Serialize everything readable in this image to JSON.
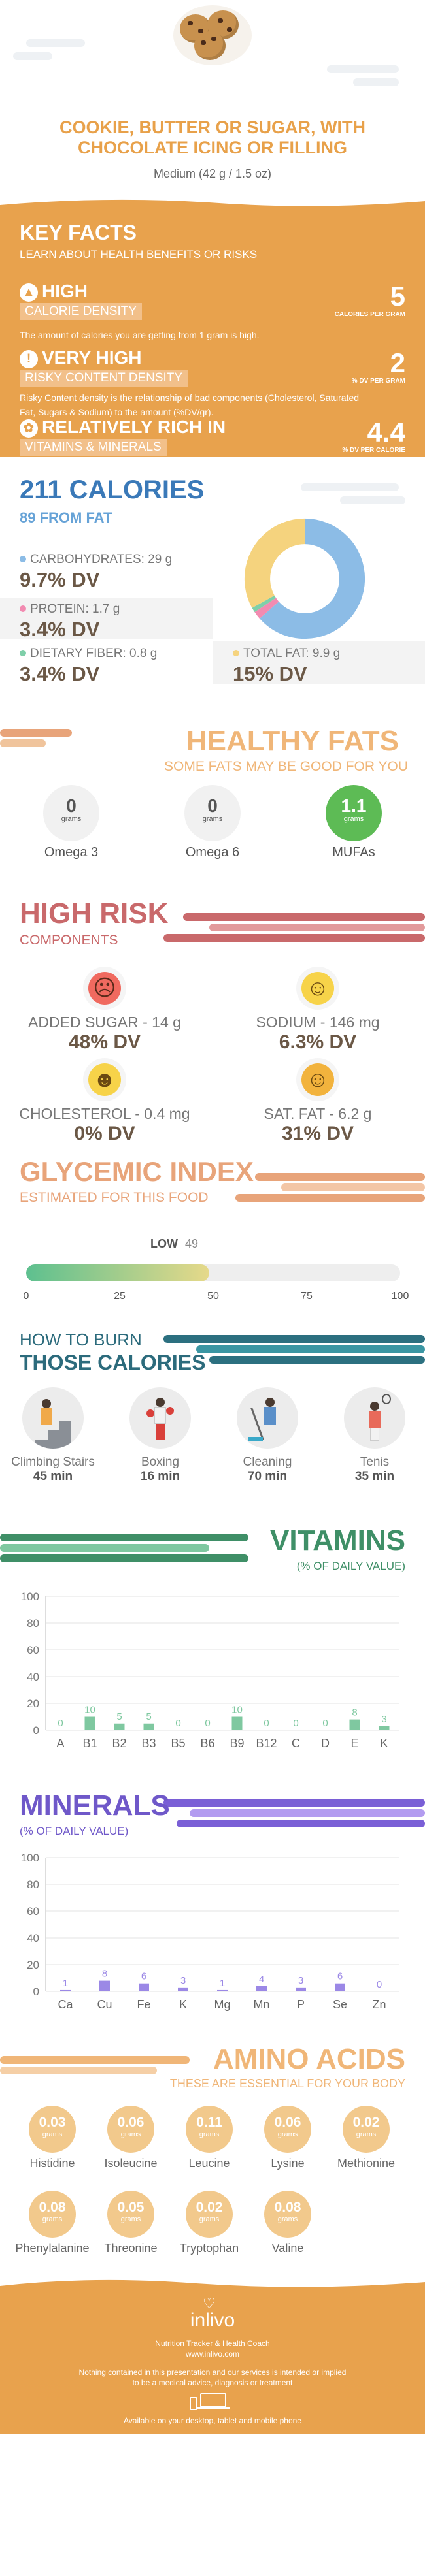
{
  "header": {
    "title_line1": "COOKIE, BUTTER OR SUGAR, WITH",
    "title_line2": "CHOCOLATE ICING OR FILLING",
    "serving": "Medium (42 g / 1.5 oz)"
  },
  "key_facts": {
    "title": "KEY FACTS",
    "subtitle": "LEARN ABOUT HEALTH BENEFITS OR RISKS",
    "items": [
      {
        "level": "HIGH",
        "tag": "CALORIE DENSITY",
        "desc": "The amount of calories you are getting from 1 gram is high.",
        "value": "5",
        "unit": "CALORIES PER GRAM"
      },
      {
        "level": "VERY HIGH",
        "tag": "RISKY CONTENT DENSITY",
        "desc": "Risky Content density is the relationship of bad components (Cholesterol, Saturated Fat, Sugars & Sodium) to the amount (%DV/gr).",
        "value": "2",
        "unit": "% DV PER GRAM"
      },
      {
        "level": "RELATIVELY RICH  IN",
        "tag": "VITAMINS & MINERALS",
        "desc": "",
        "value": "4.4",
        "unit": "% DV PER CALORIE"
      }
    ]
  },
  "calories": {
    "title": "211 CALORIES",
    "from_fat": "89 FROM FAT",
    "carbs": {
      "label": "CARBOHYDRATES: 29 g",
      "dv": "9.7% DV",
      "color": "#8cbce6"
    },
    "protein": {
      "label": "PROTEIN: 1.7 g",
      "dv": "3.4% DV",
      "color": "#f28bb1"
    },
    "fiber": {
      "label": "DIETARY FIBER: 0.8 g",
      "dv": "3.4% DV",
      "color": "#7fcfa9"
    },
    "fat": {
      "label": "TOTAL FAT: 9.9 g",
      "dv": "15% DV",
      "color": "#f5d37e"
    }
  },
  "healthy_fats": {
    "title": "HEALTHY FATS",
    "subtitle": "SOME FATS MAY BE GOOD FOR YOU",
    "unit": "grams",
    "items": [
      {
        "value": "0",
        "name": "Omega 3"
      },
      {
        "value": "0",
        "name": "Omega 6"
      },
      {
        "value": "1.1",
        "name": "MUFAs"
      }
    ]
  },
  "high_risk": {
    "title": "HIGH RISK",
    "subtitle": "COMPONENTS",
    "items": [
      {
        "label": "ADDED SUGAR - 14 g",
        "dv": "48% DV",
        "face": "☹",
        "color": "#f06a5f"
      },
      {
        "label": "SODIUM - 146 mg",
        "dv": "6.3% DV",
        "face": "☺",
        "color": "#f7d349"
      },
      {
        "label": "CHOLESTEROL - 0.4 mg",
        "dv": "0% DV",
        "face": "☻",
        "color": "#f7d349"
      },
      {
        "label": "SAT. FAT - 6.2 g",
        "dv": "31% DV",
        "face": "☺",
        "color": "#f2b33d"
      }
    ]
  },
  "glycemic": {
    "title": "GLYCEMIC INDEX",
    "subtitle": "ESTIMATED FOR THIS FOOD",
    "level": "LOW",
    "value": 49,
    "ticks": [
      "0",
      "25",
      "50",
      "75",
      "100"
    ]
  },
  "burn": {
    "title1": "HOW TO BURN",
    "title2": "THOSE CALORIES",
    "activities": [
      {
        "name": "Climbing Stairs",
        "time": "45 min"
      },
      {
        "name": "Boxing",
        "time": "16 min"
      },
      {
        "name": "Cleaning",
        "time": "70 min"
      },
      {
        "name": "Tenis",
        "time": "35 min"
      }
    ]
  },
  "vitamins": {
    "title": "VITAMINS",
    "subtitle": "(% OF DAILY VALUE)"
  },
  "minerals": {
    "title": "MINERALS",
    "subtitle": "(% OF DAILY VALUE)"
  },
  "chart_data": [
    {
      "type": "bar",
      "categories": [
        "A",
        "B1",
        "B2",
        "B3",
        "B5",
        "B6",
        "B9",
        "B12",
        "C",
        "D",
        "E",
        "K"
      ],
      "values": [
        0,
        10,
        5,
        5,
        0,
        0,
        10,
        0,
        0,
        0,
        8,
        3
      ],
      "ylim": [
        0,
        100
      ],
      "yticks": [
        0,
        20,
        40,
        60,
        80,
        100
      ],
      "color": "#7fc8a0",
      "grid": true
    },
    {
      "type": "bar",
      "categories": [
        "Ca",
        "Cu",
        "Fe",
        "K",
        "Mg",
        "Mn",
        "P",
        "Se",
        "Zn"
      ],
      "values": [
        1,
        8,
        6,
        3,
        1,
        4,
        3,
        6,
        0
      ],
      "ylim": [
        0,
        100
      ],
      "yticks": [
        0,
        20,
        40,
        60,
        80,
        100
      ],
      "color": "#9b88e6",
      "grid": true
    }
  ],
  "amino": {
    "title": "AMINO ACIDS",
    "subtitle": "THESE ARE ESSENTIAL FOR YOUR BODY",
    "unit": "grams",
    "items": [
      {
        "value": "0.03",
        "name": "Histidine"
      },
      {
        "value": "0.06",
        "name": "Isoleucine"
      },
      {
        "value": "0.11",
        "name": "Leucine"
      },
      {
        "value": "0.06",
        "name": "Lysine"
      },
      {
        "value": "0.02",
        "name": "Methionine"
      },
      {
        "value": "0.08",
        "name": "Phenylalanine"
      },
      {
        "value": "0.05",
        "name": "Threonine"
      },
      {
        "value": "0.02",
        "name": "Tryptophan"
      },
      {
        "value": "0.08",
        "name": "Valine"
      }
    ]
  },
  "footer": {
    "brand": "inlivo",
    "tagline": "Nutrition Tracker & Health Coach",
    "url": "www.inlivo.com",
    "disclaimer1": "Nothing contained in this presentation and our services is intended or implied",
    "disclaimer2": "to be a medical advice, diagnosis or treatment",
    "available": "Available on your desktop, tablet and mobile phone"
  }
}
